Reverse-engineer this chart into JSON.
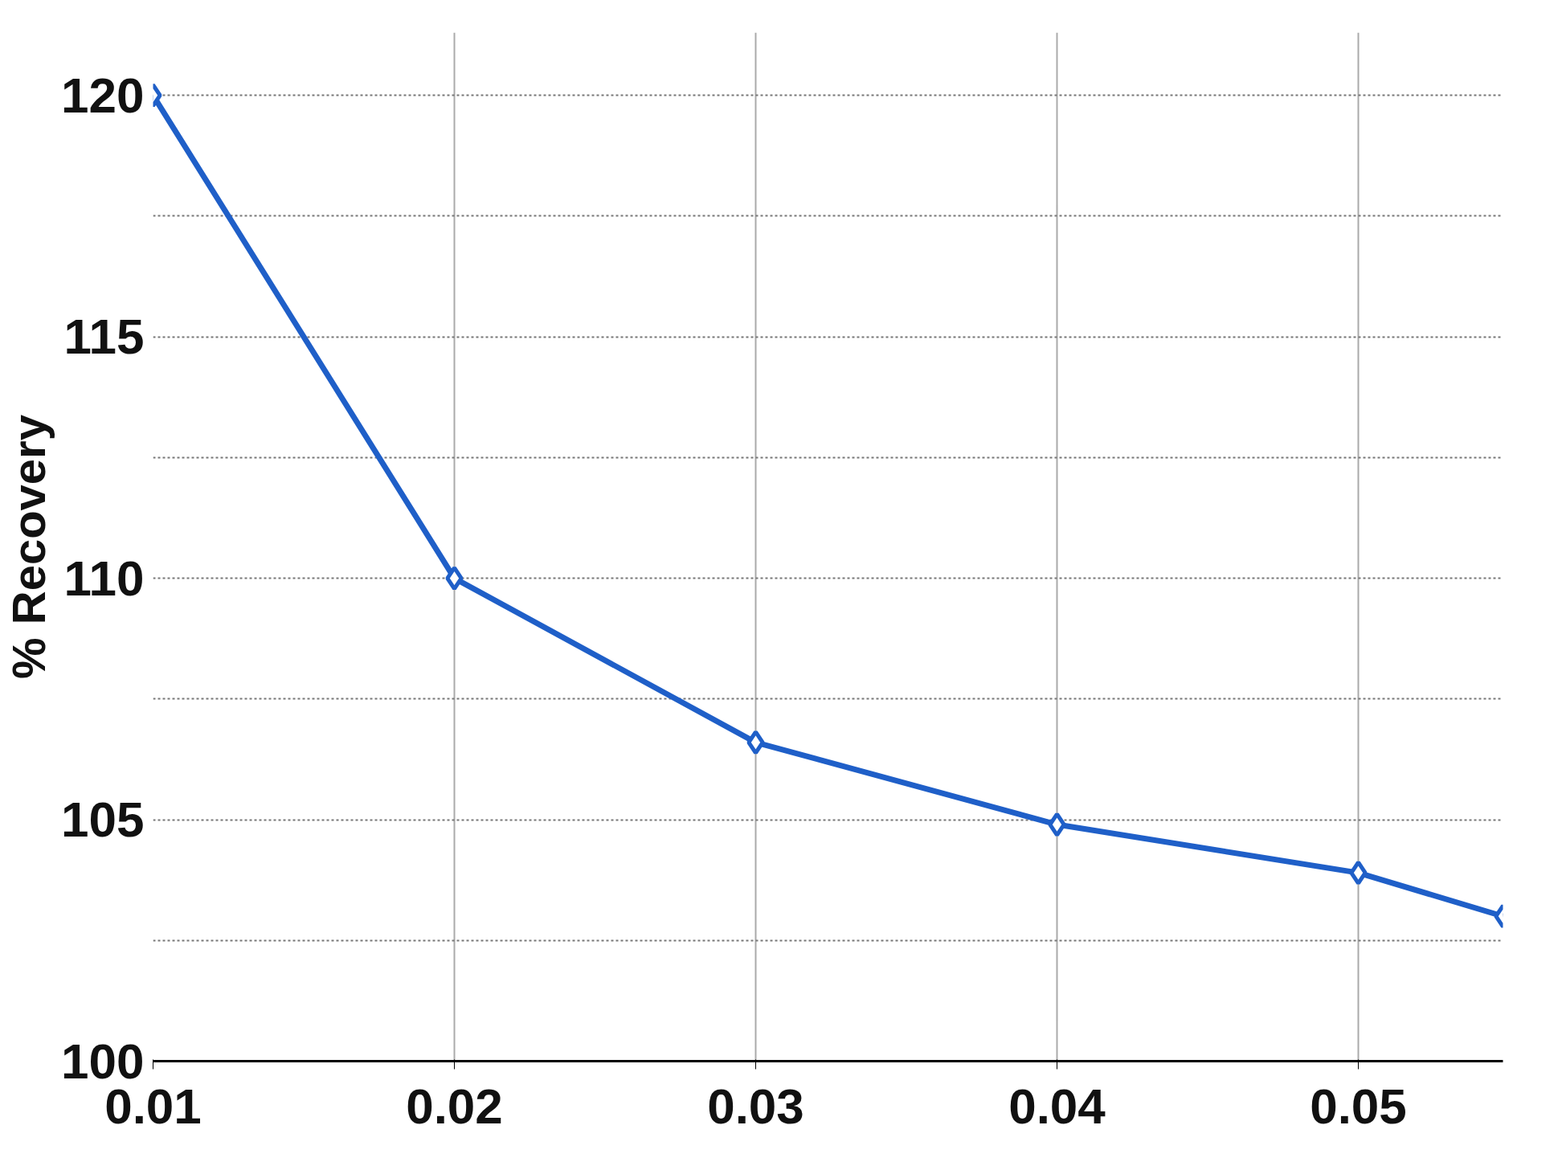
{
  "chart_data": {
    "type": "line",
    "ylabel": "% Recovery",
    "x": [
      0.01,
      0.02,
      0.03,
      0.04,
      0.05,
      0.0548
    ],
    "series": [
      {
        "color": "#1f5fc8",
        "values": [
          120,
          110,
          106.6,
          104.9,
          103.9,
          103
        ]
      }
    ],
    "xlim": [
      0.01,
      0.0548
    ],
    "ylim": [
      100,
      121.3
    ],
    "xticks": [
      0.01,
      0.02,
      0.03,
      0.04,
      0.05
    ],
    "yticks": [
      100,
      {
        "value": 102.5,
        "label": null
      },
      105,
      {
        "value": 107.5,
        "label": null
      },
      110,
      {
        "value": 112.5,
        "label": null
      },
      115,
      {
        "value": 117.5,
        "label": null
      },
      120
    ],
    "grid": true,
    "marker": "diamond",
    "line_style": "solid"
  }
}
